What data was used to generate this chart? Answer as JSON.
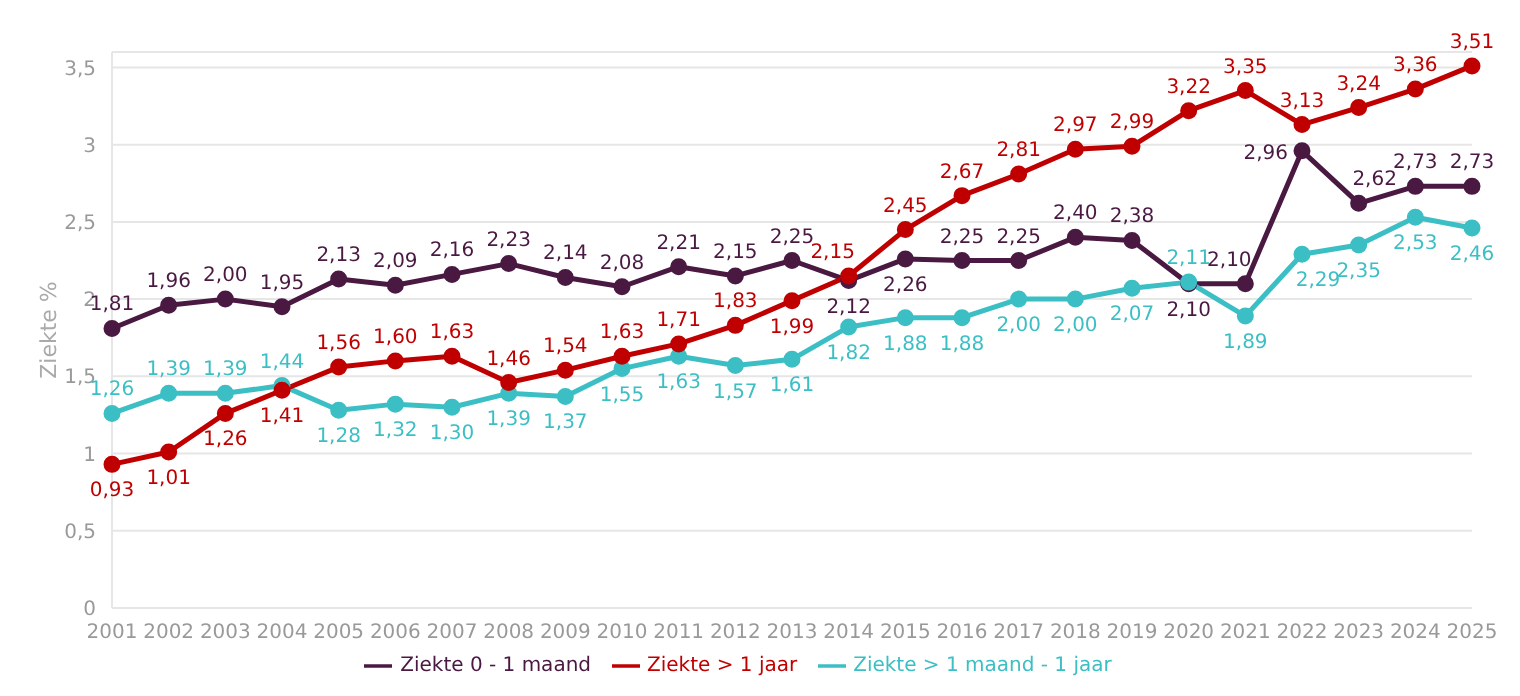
{
  "chart_data": {
    "type": "line",
    "ylabel": "Ziekte %",
    "categories": [
      "2001",
      "2002",
      "2003",
      "2004",
      "2005",
      "2006",
      "2007",
      "2008",
      "2009",
      "2010",
      "2011",
      "2012",
      "2013",
      "2014",
      "2015",
      "2016",
      "2017",
      "2018",
      "2019",
      "2020",
      "2021",
      "2022",
      "2023",
      "2024",
      "2025"
    ],
    "series": [
      {
        "name": "Ziekte 0 - 1 maand",
        "color": "#4a1942",
        "values": [
          1.81,
          1.96,
          2.0,
          1.95,
          2.13,
          2.09,
          2.16,
          2.23,
          2.14,
          2.08,
          2.21,
          2.15,
          2.25,
          2.12,
          2.26,
          2.25,
          2.25,
          2.4,
          2.38,
          2.1,
          2.1,
          2.96,
          2.62,
          2.73,
          2.73
        ],
        "value_labels": [
          "1,81",
          "1,96",
          "2,00",
          "1,95",
          "2,13",
          "2,09",
          "2,16",
          "2,23",
          "2,14",
          "2,08",
          "2,21",
          "2,15",
          "2,25",
          "2,12",
          "2,26",
          "2,25",
          "2,25",
          "2,40",
          "2,38",
          "2,10",
          "2,10",
          "2,96",
          "2,62",
          "2,73",
          "2,73"
        ]
      },
      {
        "name": "Ziekte > 1 maand - 1 jaar",
        "color": "#3bbfc4",
        "values": [
          1.26,
          1.39,
          1.39,
          1.44,
          1.28,
          1.32,
          1.3,
          1.39,
          1.37,
          1.55,
          1.63,
          1.57,
          1.61,
          1.82,
          1.88,
          1.88,
          2.0,
          2.0,
          2.07,
          2.11,
          1.89,
          2.29,
          2.35,
          2.53,
          2.46
        ],
        "value_labels": [
          "1,26",
          "1,39",
          "1,39",
          "1,44",
          "1,28",
          "1,32",
          "1,30",
          "1,39",
          "1,37",
          "1,55",
          "1,63",
          "1,57",
          "1,61",
          "1,82",
          "1,88",
          "1,88",
          "2,00",
          "2,00",
          "2,07",
          "2,11",
          "1,89",
          "2,29",
          "2,35",
          "2,53",
          "2,46"
        ]
      },
      {
        "name": "Ziekte > 1 jaar",
        "color": "#c00000",
        "values": [
          0.93,
          1.01,
          1.26,
          1.41,
          1.56,
          1.6,
          1.63,
          1.46,
          1.54,
          1.63,
          1.71,
          1.83,
          1.99,
          2.15,
          2.45,
          2.67,
          2.81,
          2.97,
          2.99,
          3.22,
          3.35,
          3.13,
          3.24,
          3.36,
          3.51
        ],
        "value_labels": [
          "0,93",
          "1,01",
          "1,26",
          "1,41",
          "1,56",
          "1,60",
          "1,63",
          "1,46",
          "1,54",
          "1,63",
          "1,71",
          "1,83",
          "1,99",
          "2,15",
          "2,45",
          "2,67",
          "2,81",
          "2,97",
          "2,99",
          "3,22",
          "3,35",
          "3,13",
          "3,24",
          "3,36",
          "3,51"
        ]
      }
    ],
    "ylim": [
      0,
      3.6
    ],
    "yticks": [
      0,
      {
        "value": 0.5,
        "label": "0,5"
      },
      1,
      {
        "value": 1.5,
        "label": "1,5"
      },
      2,
      {
        "value": 2.5,
        "label": "2,5"
      },
      3,
      {
        "value": 3.5,
        "label": "3,5"
      }
    ],
    "grid": "y",
    "legend": "bottom",
    "marker": "circle",
    "line_style": "solid"
  }
}
